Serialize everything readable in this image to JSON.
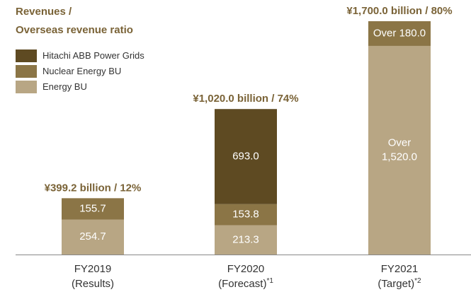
{
  "chart_data": {
    "type": "stacked_bar",
    "title": [
      "Revenues /",
      "Overseas revenue ratio"
    ],
    "categories": [
      "FY2019",
      "FY2020",
      "FY2021"
    ],
    "category_notes": [
      "(Results)",
      "(Forecast)*1",
      "(Target)*2"
    ],
    "totals": [
      "¥399.2 billion / 12%",
      "¥1,020.0 billion / 74%",
      "¥1,700.0 billion / 80%"
    ],
    "series": [
      {
        "name": "Energy BU",
        "color": "#b8a684",
        "values": [
          254.7,
          213.3,
          1520
        ],
        "value_labels": [
          "254.7",
          "213.3",
          "Over 1,520.0"
        ]
      },
      {
        "name": "Nuclear Energy BU",
        "color": "#8b7546",
        "values": [
          155.7,
          153.8,
          180
        ],
        "value_labels": [
          "155.7",
          "153.8",
          "Over 180.0"
        ]
      },
      {
        "name": "Hitachi ABB Power Grids",
        "color": "#5e4a22",
        "values": [
          null,
          693.0,
          null
        ],
        "value_labels": [
          null,
          "693.0",
          null
        ]
      }
    ],
    "ylim": [
      0,
      1700
    ]
  }
}
